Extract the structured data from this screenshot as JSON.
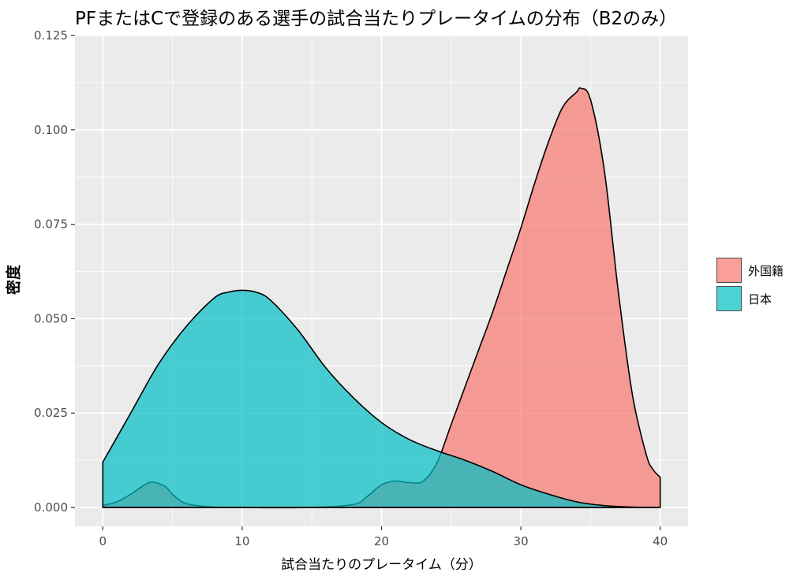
{
  "chart_data": {
    "type": "area",
    "title": "PFまたはCで登録のある選手の試合当たりプレータイムの分布（B2のみ）",
    "xlabel": "試合当たりのプレータイム（分）",
    "ylabel": "密度",
    "xlim": [
      -2,
      42
    ],
    "ylim": [
      -0.005,
      0.125
    ],
    "x_ticks": [
      0,
      10,
      20,
      30,
      40
    ],
    "x_tick_labels": [
      "0",
      "10",
      "20",
      "30",
      "40"
    ],
    "y_ticks": [
      0,
      0.025,
      0.05,
      0.075,
      0.1,
      0.125
    ],
    "y_tick_labels": [
      "0.000",
      "0.025",
      "0.050",
      "0.075",
      "0.100",
      "0.125"
    ],
    "grid": true,
    "legend_position": "right",
    "series": [
      {
        "name": "外国籍",
        "color": "#F8766D",
        "x": [
          0,
          1,
          2,
          3,
          3.6,
          4.5,
          5,
          6,
          8,
          10,
          15,
          18,
          19,
          20,
          21,
          22,
          23,
          24,
          25,
          26,
          27,
          28,
          29,
          30,
          31,
          32,
          33,
          34,
          34.3,
          35,
          36,
          37,
          38,
          39,
          39.5,
          40
        ],
        "y": [
          0.0005,
          0.0015,
          0.0035,
          0.006,
          0.0067,
          0.0055,
          0.0035,
          0.001,
          0.0001,
          0.0,
          0.0,
          0.0008,
          0.003,
          0.006,
          0.007,
          0.0066,
          0.007,
          0.012,
          0.022,
          0.032,
          0.042,
          0.052,
          0.063,
          0.074,
          0.086,
          0.097,
          0.106,
          0.11,
          0.111,
          0.108,
          0.089,
          0.057,
          0.03,
          0.014,
          0.01,
          0.008
        ]
      },
      {
        "name": "日本",
        "color": "#00BFC4",
        "x": [
          0,
          2,
          4,
          6,
          8,
          9,
          10,
          11,
          12,
          14,
          16,
          18,
          20,
          22,
          24,
          26,
          28,
          30,
          32,
          34,
          36,
          38,
          40
        ],
        "y": [
          0.012,
          0.025,
          0.038,
          0.048,
          0.0555,
          0.057,
          0.0575,
          0.057,
          0.055,
          0.047,
          0.037,
          0.029,
          0.0225,
          0.018,
          0.015,
          0.0125,
          0.0095,
          0.006,
          0.0035,
          0.0015,
          0.0005,
          0.0001,
          0.0
        ]
      }
    ]
  }
}
